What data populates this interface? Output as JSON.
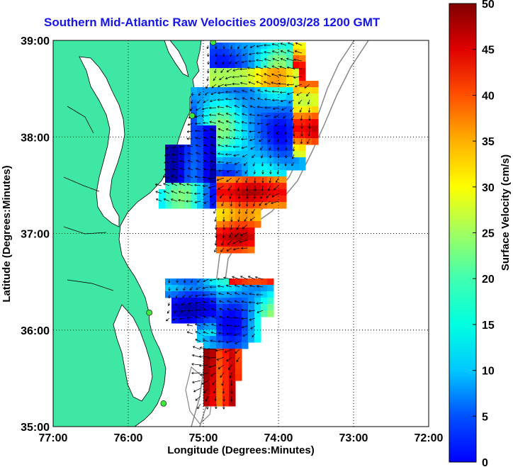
{
  "title": "Southern Mid-Atlantic Raw Velocities 2009/03/28 1200 GMT",
  "x_axis": {
    "label": "Longitude (Degrees:Minutes)",
    "ticks": [
      "77:00",
      "76:00",
      "75:00",
      "74:00",
      "73:00",
      "72:00"
    ]
  },
  "y_axis": {
    "label": "Latitude (Degrees:Minutes)",
    "ticks": [
      "39:00",
      "38:00",
      "37:00",
      "36:00",
      "35:00"
    ]
  },
  "colorbar": {
    "label": "Surface Velocity (cm/s)",
    "min": 0,
    "max": 50,
    "ticks": [
      "0",
      "5",
      "10",
      "15",
      "20",
      "25",
      "30",
      "35",
      "40",
      "45",
      "50"
    ]
  },
  "extent": {
    "lon_min": -77,
    "lon_max": -72,
    "lat_min": 35,
    "lat_max": 39
  },
  "colors": {
    "land": "#3ee8a4",
    "title": "#1515e6"
  },
  "stations": [
    {
      "lon": -74.87,
      "lat": 38.98
    },
    {
      "lon": -75.15,
      "lat": 38.22
    },
    {
      "lon": -75.72,
      "lat": 36.18
    },
    {
      "lon": -75.53,
      "lat": 35.24
    }
  ]
}
